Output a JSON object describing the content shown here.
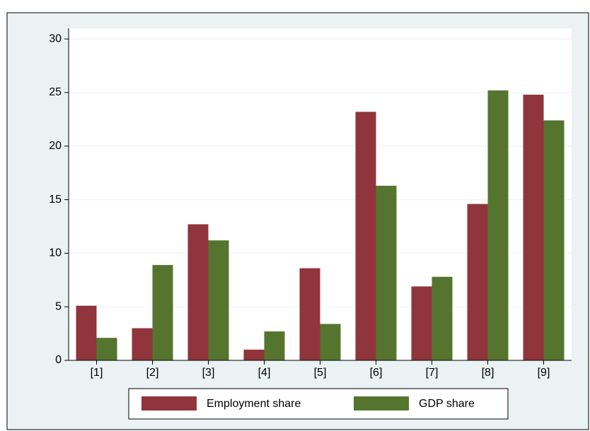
{
  "chart_data": {
    "type": "bar",
    "categories": [
      "[1]",
      "[2]",
      "[3]",
      "[4]",
      "[5]",
      "[6]",
      "[7]",
      "[8]",
      "[9]"
    ],
    "series": [
      {
        "name": "Employment share",
        "color": "#90353b",
        "values": [
          5.1,
          3.0,
          12.7,
          1.0,
          8.6,
          23.2,
          6.9,
          14.6,
          24.8
        ]
      },
      {
        "name": "GDP share",
        "color": "#55752f",
        "values": [
          2.1,
          8.9,
          11.2,
          2.7,
          3.4,
          16.3,
          7.8,
          25.2,
          22.4
        ]
      }
    ],
    "ylim": [
      0,
      31
    ],
    "yticks": [
      0,
      5,
      10,
      15,
      20,
      25,
      30
    ],
    "grid": true,
    "legend": "bottom"
  }
}
